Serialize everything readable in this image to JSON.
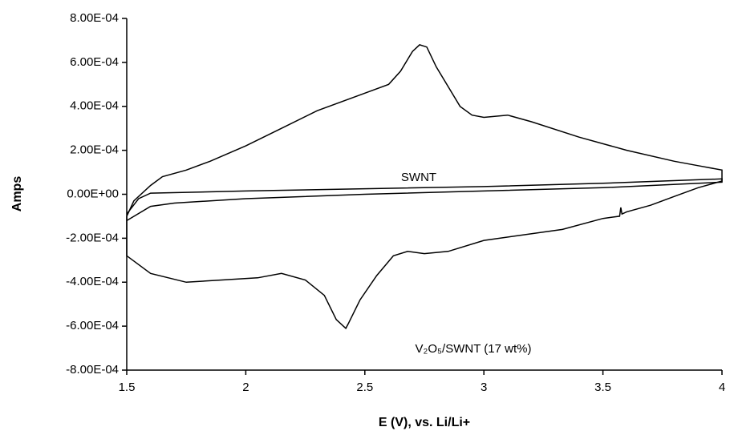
{
  "chart_data": {
    "type": "line",
    "y_label": "Amps",
    "x_label": "E (V), vs. Li/Li+",
    "xlim": [
      1.5,
      4
    ],
    "xticks": [
      1.5,
      2,
      2.5,
      3,
      3.5,
      4
    ],
    "ylim": [
      -0.0008,
      0.0008
    ],
    "yticks": [
      {
        "value": 0.0008,
        "label": "8.00E-04"
      },
      {
        "value": 0.0006,
        "label": "6.00E-04"
      },
      {
        "value": 0.0004,
        "label": "4.00E-04"
      },
      {
        "value": 0.0002,
        "label": "2.00E-04"
      },
      {
        "value": 0,
        "label": "0.00E+00"
      },
      {
        "value": -0.0002,
        "label": "-2.00E-04"
      },
      {
        "value": -0.0004,
        "label": "-4.00E-04"
      },
      {
        "value": -0.0006,
        "label": "-6.00E-04"
      },
      {
        "value": -0.0008,
        "label": "-8.00E-04"
      }
    ],
    "annotations": [
      "SWNT",
      "V₂O₅/SWNT (17 wt%)"
    ],
    "series": [
      {
        "color": "#000000",
        "x": [
          1.5,
          1.53,
          1.6,
          1.65,
          1.75,
          1.85,
          2.0,
          2.15,
          2.3,
          2.5,
          2.6,
          2.65,
          2.7,
          2.73,
          2.76,
          2.8,
          2.9,
          2.95,
          3.0,
          3.1,
          3.2,
          3.4,
          3.6,
          3.8,
          3.9,
          4.0,
          4.0,
          3.9,
          3.8,
          3.7,
          3.6,
          3.58,
          3.575,
          3.57,
          3.5,
          3.33,
          3.0,
          2.85,
          2.75,
          2.68,
          2.62,
          2.55,
          2.48,
          2.43,
          2.42,
          2.38,
          2.33,
          2.25,
          2.15,
          2.05,
          1.9,
          1.75,
          1.6,
          1.5,
          1.5
        ],
        "values": [
          -0.0001,
          -3e-05,
          4e-05,
          8e-05,
          0.00011,
          0.00015,
          0.00022,
          0.0003,
          0.00038,
          0.00046,
          0.0005,
          0.00056,
          0.00065,
          0.00068,
          0.00067,
          0.00058,
          0.0004,
          0.00036,
          0.00035,
          0.00036,
          0.00033,
          0.00026,
          0.0002,
          0.00015,
          0.00013,
          0.00011,
          6e-05,
          3e-05,
          -1e-05,
          -5e-05,
          -8e-05,
          -9e-05,
          -6e-05,
          -0.0001,
          -0.00011,
          -0.00016,
          -0.00021,
          -0.00026,
          -0.00027,
          -0.00026,
          -0.00028,
          -0.00037,
          -0.00048,
          -0.00059,
          -0.00061,
          -0.00057,
          -0.00046,
          -0.00039,
          -0.00036,
          -0.00038,
          -0.00039,
          -0.0004,
          -0.00036,
          -0.00028,
          -0.0001
        ]
      },
      {
        "color": "#000000",
        "x": [
          1.5,
          1.55,
          1.6,
          2.0,
          2.5,
          3.0,
          3.5,
          4.0,
          4.0,
          3.5,
          3.0,
          2.5,
          2.0,
          1.7,
          1.6,
          1.5
        ],
        "values": [
          -9e-05,
          -2e-05,
          5e-06,
          1.5e-05,
          2.5e-05,
          3.5e-05,
          5e-05,
          7e-05,
          5.5e-05,
          3e-05,
          1.5e-05,
          0.0,
          -2e-05,
          -4e-05,
          -5.5e-05,
          -0.00012
        ]
      }
    ]
  }
}
